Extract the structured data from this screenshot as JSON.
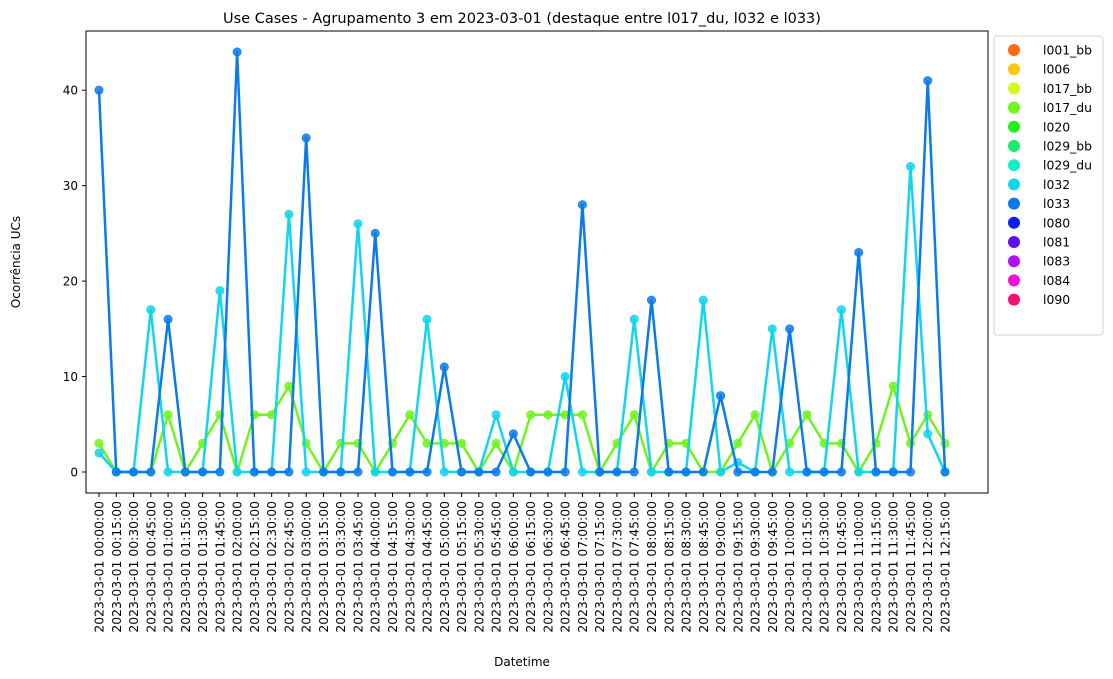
{
  "chart_data": {
    "type": "line",
    "title": "Use Cases - Agrupamento 3 em 2023-03-01 (destaque entre l017_du, l032 e l033)",
    "xlabel": "Datetime",
    "ylabel": "Ocorrência UCs",
    "ylim": [
      -2.2,
      46.2
    ],
    "yticks": [
      0,
      10,
      20,
      30,
      40
    ],
    "grid": false,
    "legend_position": "outside-right",
    "x": [
      "2023-03-01 00:00:00",
      "2023-03-01 00:15:00",
      "2023-03-01 00:30:00",
      "2023-03-01 00:45:00",
      "2023-03-01 01:00:00",
      "2023-03-01 01:15:00",
      "2023-03-01 01:30:00",
      "2023-03-01 01:45:00",
      "2023-03-01 02:00:00",
      "2023-03-01 02:15:00",
      "2023-03-01 02:30:00",
      "2023-03-01 02:45:00",
      "2023-03-01 03:00:00",
      "2023-03-01 03:15:00",
      "2023-03-01 03:30:00",
      "2023-03-01 03:45:00",
      "2023-03-01 04:00:00",
      "2023-03-01 04:15:00",
      "2023-03-01 04:30:00",
      "2023-03-01 04:45:00",
      "2023-03-01 05:00:00",
      "2023-03-01 05:15:00",
      "2023-03-01 05:30:00",
      "2023-03-01 05:45:00",
      "2023-03-01 06:00:00",
      "2023-03-01 06:15:00",
      "2023-03-01 06:30:00",
      "2023-03-01 06:45:00",
      "2023-03-01 07:00:00",
      "2023-03-01 07:15:00",
      "2023-03-01 07:30:00",
      "2023-03-01 07:45:00",
      "2023-03-01 08:00:00",
      "2023-03-01 08:15:00",
      "2023-03-01 08:30:00",
      "2023-03-01 08:45:00",
      "2023-03-01 09:00:00",
      "2023-03-01 09:15:00",
      "2023-03-01 09:30:00",
      "2023-03-01 09:45:00",
      "2023-03-01 10:00:00",
      "2023-03-01 10:15:00",
      "2023-03-01 10:30:00",
      "2023-03-01 10:45:00",
      "2023-03-01 11:00:00",
      "2023-03-01 11:15:00",
      "2023-03-01 11:30:00",
      "2023-03-01 11:45:00",
      "2023-03-01 12:00:00",
      "2023-03-01 12:15:00"
    ],
    "series": [
      {
        "name": "l017_du",
        "color": "#6ff51e",
        "values": [
          3,
          0,
          0,
          0,
          6,
          0,
          3,
          6,
          0,
          6,
          6,
          9,
          3,
          0,
          3,
          3,
          0,
          3,
          6,
          3,
          3,
          3,
          0,
          3,
          0,
          6,
          6,
          6,
          6,
          0,
          3,
          6,
          0,
          3,
          3,
          0,
          0,
          3,
          6,
          0,
          3,
          6,
          3,
          3,
          0,
          3,
          9,
          3,
          6,
          3
        ]
      },
      {
        "name": "l032",
        "color": "#12d5ef",
        "values": [
          2,
          0,
          0,
          17,
          0,
          0,
          0,
          19,
          0,
          0,
          0,
          27,
          0,
          0,
          0,
          26,
          0,
          0,
          0,
          16,
          0,
          0,
          0,
          6,
          0,
          0,
          0,
          10,
          0,
          0,
          0,
          16,
          0,
          0,
          0,
          18,
          0,
          1,
          0,
          15,
          0,
          0,
          0,
          17,
          0,
          0,
          0,
          32,
          4,
          0
        ]
      },
      {
        "name": "l033",
        "color": "#0b7bec",
        "values": [
          40,
          0,
          0,
          0,
          16,
          0,
          0,
          0,
          44,
          0,
          0,
          0,
          35,
          0,
          0,
          0,
          25,
          0,
          0,
          0,
          11,
          0,
          0,
          0,
          4,
          0,
          0,
          0,
          28,
          0,
          0,
          0,
          18,
          0,
          0,
          0,
          8,
          0,
          0,
          0,
          15,
          0,
          0,
          0,
          23,
          0,
          0,
          0,
          41,
          0
        ]
      }
    ],
    "legend": [
      {
        "name": "l001_bb",
        "color": "#ff6a17"
      },
      {
        "name": "l006",
        "color": "#ffc80e"
      },
      {
        "name": "l017_bb",
        "color": "#d4fa14"
      },
      {
        "name": "l017_du",
        "color": "#6ff51e"
      },
      {
        "name": "l020",
        "color": "#1ff41a"
      },
      {
        "name": "l029_bb",
        "color": "#17ef6a"
      },
      {
        "name": "l029_du",
        "color": "#12f1c4"
      },
      {
        "name": "l032",
        "color": "#12d5ef"
      },
      {
        "name": "l033",
        "color": "#0b7bec"
      },
      {
        "name": "l080",
        "color": "#0e1df0"
      },
      {
        "name": "l081",
        "color": "#5b0ff2"
      },
      {
        "name": "l083",
        "color": "#b10ff4"
      },
      {
        "name": "l084",
        "color": "#f20fd8"
      },
      {
        "name": "l090",
        "color": "#fb0c77"
      }
    ]
  }
}
